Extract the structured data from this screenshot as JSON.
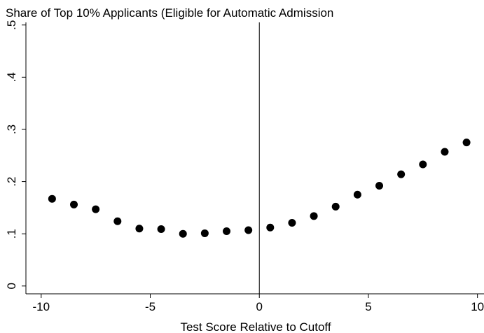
{
  "chart_data": {
    "type": "scatter",
    "title": "Share of Top 10% Applicants (Eligible for Automatic Admission",
    "xlabel": "Test Score Relative to Cutoff",
    "ylabel": "",
    "xlim": [
      -10.7,
      10.3
    ],
    "ylim": [
      -0.015,
      0.505
    ],
    "xticks": [
      -10,
      -5,
      0,
      5,
      10
    ],
    "xtick_labels": [
      "-10",
      "-5",
      "0",
      "5",
      "10"
    ],
    "yticks": [
      0,
      0.1,
      0.2,
      0.3,
      0.4,
      0.5
    ],
    "ytick_labels": [
      "0",
      ".1",
      ".2",
      ".3",
      ".4",
      ".5"
    ],
    "vline_x": 0,
    "grid": false,
    "series": [
      {
        "color": "#000000",
        "points": [
          {
            "x": -9.5,
            "y": 0.167
          },
          {
            "x": -8.5,
            "y": 0.156
          },
          {
            "x": -7.5,
            "y": 0.147
          },
          {
            "x": -6.5,
            "y": 0.124
          },
          {
            "x": -5.5,
            "y": 0.11
          },
          {
            "x": -4.5,
            "y": 0.109
          },
          {
            "x": -3.5,
            "y": 0.1
          },
          {
            "x": -2.5,
            "y": 0.101
          },
          {
            "x": -1.5,
            "y": 0.105
          },
          {
            "x": -0.5,
            "y": 0.107
          },
          {
            "x": 0.5,
            "y": 0.112
          },
          {
            "x": 1.5,
            "y": 0.121
          },
          {
            "x": 2.5,
            "y": 0.134
          },
          {
            "x": 3.5,
            "y": 0.152
          },
          {
            "x": 4.5,
            "y": 0.175
          },
          {
            "x": 5.5,
            "y": 0.192
          },
          {
            "x": 6.5,
            "y": 0.214
          },
          {
            "x": 7.5,
            "y": 0.233
          },
          {
            "x": 8.5,
            "y": 0.257
          },
          {
            "x": 9.5,
            "y": 0.275
          }
        ]
      }
    ]
  }
}
